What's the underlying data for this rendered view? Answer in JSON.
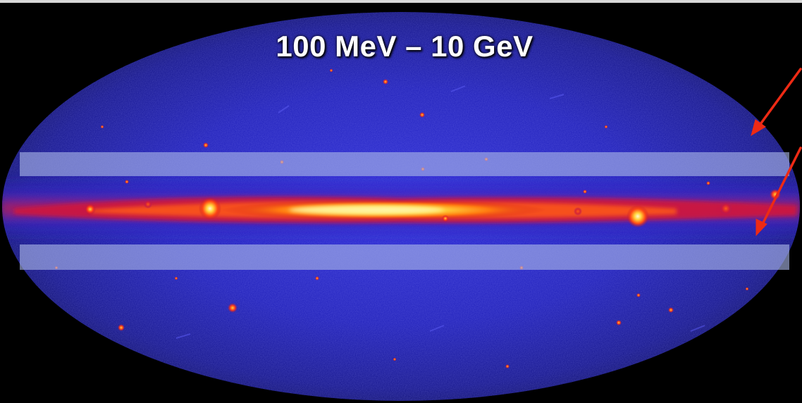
{
  "image": {
    "title": "100 MeV – 10 GeV",
    "subject": "all-sky gamma-ray map",
    "colors": {
      "background": "#000000",
      "sky_dark": "#0a0a5a",
      "sky_mid": "#1a1ab0",
      "sky_light": "#3a3ae0",
      "band_red": "#d21a1a",
      "band_orange": "#ff7a10",
      "band_yellow": "#ffe14a",
      "overlay_band": "#aab6e6",
      "arrow": "#ee2a14"
    },
    "overlays": [
      "upper-highlight-band",
      "lower-highlight-band"
    ],
    "annotations": [
      "red-arrow-upper",
      "red-arrow-lower"
    ]
  }
}
